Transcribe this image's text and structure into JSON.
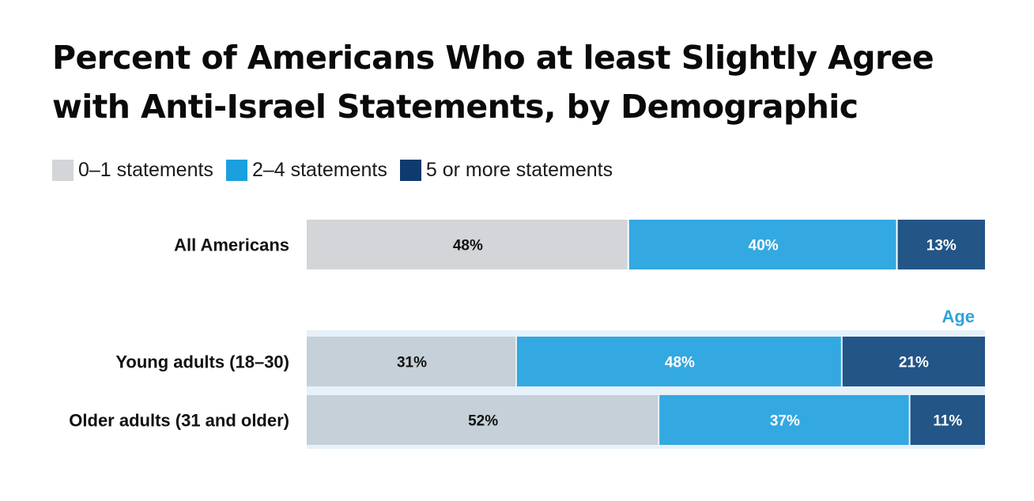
{
  "title_lines": [
    "Percent of Americans Who at least Slightly Agree",
    "with Anti-Israel Statements, by Demographic"
  ],
  "colors": {
    "low": "#d3d5d8",
    "mid": "#33a8e1",
    "high": "#235587",
    "low_shaded": "#c5d0d8",
    "group_band": "#e6f1f9",
    "age_label": "#2ea3dc"
  },
  "legend": [
    {
      "label": "0–1 statements",
      "color": "#d3d5d8"
    },
    {
      "label": "2–4 statements",
      "color": "#1aa0de"
    },
    {
      "label": "5 or more statements",
      "color": "#0f3a6e"
    }
  ],
  "chart_data": {
    "type": "bar",
    "orientation": "horizontal",
    "stacked": true,
    "categories": [
      "All Americans",
      "Young adults (18–30)",
      "Older adults (31 and older)"
    ],
    "series": [
      {
        "name": "0–1 statements",
        "values": [
          48,
          31,
          52
        ]
      },
      {
        "name": "2–4 statements",
        "values": [
          40,
          48,
          37
        ]
      },
      {
        "name": "5 or more statements",
        "values": [
          13,
          21,
          11
        ]
      }
    ],
    "value_labels": [
      [
        "48%",
        "40%",
        "13%"
      ],
      [
        "31%",
        "48%",
        "21%"
      ],
      [
        "52%",
        "37%",
        "11%"
      ]
    ],
    "group_label": "Age",
    "legend_position": "top-left"
  }
}
